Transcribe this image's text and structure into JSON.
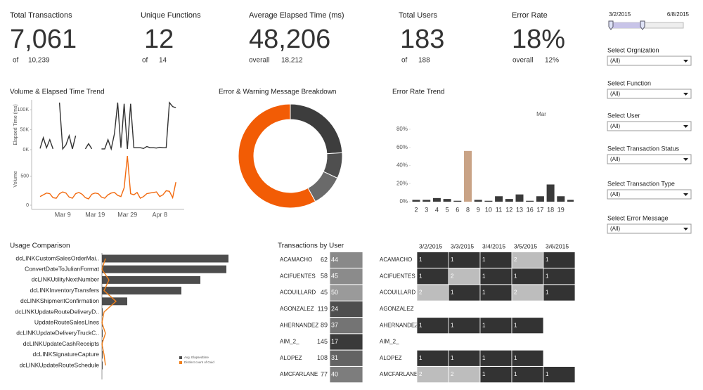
{
  "kpis": [
    {
      "title": "Total Transactions",
      "value": "7,061",
      "qualifier": "of",
      "reference": "10,239"
    },
    {
      "title": "Unique Functions",
      "value": "12",
      "qualifier": "of",
      "reference": "14"
    },
    {
      "title": "Average Elapsed Time (ms)",
      "value": "48,206",
      "qualifier": "overall",
      "reference": "18,212"
    },
    {
      "title": "Total Users",
      "value": "183",
      "qualifier": "of",
      "reference": "188"
    },
    {
      "title": "Error Rate",
      "value": "18%",
      "qualifier": "overall",
      "reference": "12%"
    }
  ],
  "filters": {
    "date_range": [
      "3/2/2015",
      "6/8/2015"
    ],
    "selects": [
      {
        "label": "Select Orgnization",
        "value": "(All)"
      },
      {
        "label": "Select Function",
        "value": "(All)"
      },
      {
        "label": "Select User",
        "value": "(All)"
      },
      {
        "label": "Select Transaction Status",
        "value": "(All)"
      },
      {
        "label": "Select Transaction Type",
        "value": "(All)"
      },
      {
        "label": "Select Error Message",
        "value": "(All)"
      }
    ]
  },
  "chart_data": [
    {
      "type": "line",
      "title": "Volume & Elapsed Time Trend",
      "y_label": "Elapsed Time (ms)",
      "color": "#333333",
      "values": [
        3000,
        30000,
        5000,
        25000,
        2000,
        null,
        118000,
        2000,
        12000,
        35000,
        2000,
        35000,
        null,
        null,
        2000,
        15000,
        2000,
        null,
        null,
        2000,
        2000,
        25000,
        2000,
        40000,
        118000,
        5000,
        115000,
        2000,
        115000,
        5000,
        5000,
        5000,
        3000,
        8000,
        5000,
        5000,
        4000,
        6000,
        5000,
        5000,
        118000,
        108000,
        105000
      ],
      "ylim": [
        0,
        125000
      ],
      "yticks": [
        {
          "value": 0,
          "label": "0K"
        },
        {
          "value": 50000,
          "label": "50K"
        },
        {
          "value": 100000,
          "label": "100K"
        }
      ]
    },
    {
      "type": "line",
      "y_label": "Volume",
      "color": "#f26a0f",
      "categories": [
        null,
        null,
        null,
        null,
        null,
        null,
        null,
        "Mar 9",
        null,
        null,
        null,
        null,
        null,
        null,
        null,
        null,
        null,
        "Mar 19",
        null,
        null,
        null,
        null,
        null,
        null,
        null,
        null,
        null,
        "Mar 29",
        null,
        null,
        null,
        null,
        null,
        null,
        null,
        null,
        null,
        "Apr 8",
        null,
        null,
        null,
        null,
        null
      ],
      "values": [
        150,
        180,
        210,
        200,
        130,
        120,
        200,
        230,
        210,
        140,
        120,
        200,
        220,
        190,
        130,
        110,
        190,
        210,
        200,
        140,
        120,
        180,
        210,
        220,
        170,
        150,
        300,
        850,
        200,
        180,
        220,
        120,
        150,
        200,
        210,
        220,
        230,
        150,
        180,
        250,
        240,
        130,
        400
      ],
      "ylim": [
        0,
        900
      ],
      "yticks": [
        0,
        500
      ]
    },
    {
      "type": "pie",
      "title": "Error & Warning Message Breakdown",
      "values": [
        24,
        8,
        10,
        58
      ],
      "colors": [
        "#3d3d3d",
        "#4f4f4f",
        "#6a6a6a",
        "#f25c05"
      ]
    },
    {
      "type": "bar",
      "title": "Error Rate Trend",
      "x_group_label": "Mar",
      "categories": [
        "2",
        "3",
        "4",
        "5",
        "6",
        "8",
        "9",
        "10",
        "11",
        "12",
        "13",
        "16",
        "17",
        "18",
        "19",
        null
      ],
      "values": [
        2,
        2,
        4,
        3,
        1,
        56,
        2,
        1,
        6,
        3,
        8,
        1,
        6,
        19,
        6,
        2
      ],
      "colors": [
        "#3a3a3a",
        "#3a3a3a",
        "#3a3a3a",
        "#3a3a3a",
        "#3a3a3a",
        "#c9a386",
        "#3a3a3a",
        "#3a3a3a",
        "#3a3a3a",
        "#3a3a3a",
        "#3a3a3a",
        "#3a3a3a",
        "#3a3a3a",
        "#3a3a3a",
        "#3a3a3a",
        "#3a3a3a"
      ],
      "ylim": [
        0,
        90
      ],
      "yticks": [
        {
          "value": 0,
          "label": "0%"
        },
        {
          "value": 20,
          "label": "20%"
        },
        {
          "value": 40,
          "label": "40%"
        },
        {
          "value": 60,
          "label": "60%"
        },
        {
          "value": 80,
          "label": "80%"
        }
      ]
    },
    {
      "type": "hbar",
      "title": "Usage Comparison",
      "categories": [
        "dcLINKCustomSalesOrderMai..",
        "ConvertDateToJulianFormat",
        "dcLINKUtilityNextNumber",
        "dcLINKInventoryTransfers",
        "dcLINKShipmentConfirmation",
        "dcLINKUpdateRouteDeliveryD..",
        "UpdateRouteSalesLInes",
        "dcLINKUpdateDeliveryTruckC..",
        "dcLINKUpdateCashReceipts",
        "dcLINKSignatureCapture",
        "dcLINKUpdateRouteSchedule"
      ],
      "series": [
        {
          "name": "Avg. Elapsedtime",
          "color": "#4d4d4d",
          "values": [
            180,
            177,
            140,
            113,
            36,
            1,
            1,
            1,
            1,
            1,
            1
          ]
        },
        {
          "name": "Distinct count of Guid",
          "color": "#f07f1a",
          "values": [
            5,
            0,
            10,
            3,
            20,
            3,
            0,
            5,
            0,
            3,
            5
          ]
        }
      ]
    }
  ],
  "transactions_by_user": {
    "title": "Transactions by User",
    "shade_range": [
      "#3a3a3a",
      "#9a9a9a"
    ],
    "rows": [
      {
        "user": "ACAMACHO",
        "values": [
          62,
          44
        ]
      },
      {
        "user": "ACIFUENTES",
        "values": [
          58,
          45
        ]
      },
      {
        "user": "ACOUILLARD",
        "values": [
          45,
          50
        ]
      },
      {
        "user": "AGONZALEZ",
        "values": [
          119,
          24
        ]
      },
      {
        "user": "AHERNANDEZ",
        "values": [
          89,
          37
        ]
      },
      {
        "user": "AIM_2_",
        "values": [
          145,
          17
        ]
      },
      {
        "user": "ALOPEZ",
        "values": [
          108,
          31
        ]
      },
      {
        "user": "AMCFARLANE",
        "values": [
          77,
          40
        ]
      }
    ]
  },
  "daily_activity": {
    "dates": [
      "3/2/2015",
      "3/3/2015",
      "3/4/2015",
      "3/5/2015",
      "3/6/2015"
    ],
    "colors": {
      "1": "#333333",
      "2": "#bdbdbd"
    },
    "counts": [
      [
        1,
        1,
        1,
        2,
        1
      ],
      [
        1,
        2,
        1,
        1,
        1
      ],
      [
        2,
        1,
        1,
        2,
        1
      ],
      [
        null,
        null,
        null,
        null,
        null
      ],
      [
        1,
        1,
        1,
        1,
        null
      ],
      [
        null,
        null,
        null,
        null,
        null
      ],
      [
        1,
        1,
        1,
        1,
        null
      ],
      [
        2,
        2,
        1,
        1,
        1
      ]
    ]
  }
}
